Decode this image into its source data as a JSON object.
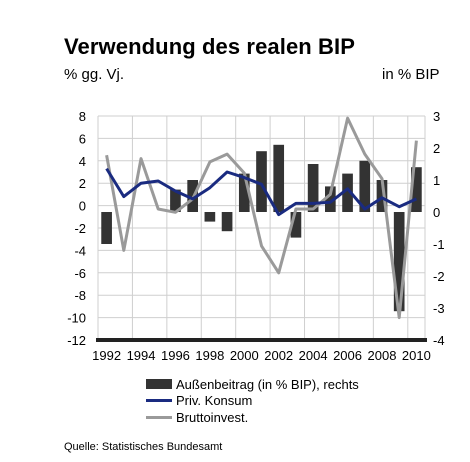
{
  "title": "Verwendung des realen BIP",
  "left_unit": "% gg. Vj.",
  "right_unit": "in % BIP",
  "source": "Quelle: Statistisches Bundesamt",
  "legend": {
    "bars": "Außenbeitrag (in % BIP), rechts",
    "konsum": "Priv. Konsum",
    "invest": "Bruttoinvest."
  },
  "colors": {
    "bars": "#333333",
    "konsum": "#1a2b80",
    "invest": "#9a9a9a",
    "grid": "#cfcfcf"
  },
  "chart_data": {
    "type": "bar",
    "years": [
      1992,
      1993,
      1994,
      1995,
      1996,
      1997,
      1998,
      1999,
      2000,
      2001,
      2002,
      2003,
      2004,
      2005,
      2006,
      2007,
      2008,
      2009,
      2010
    ],
    "x_tick_labels": [
      "1992",
      "1994",
      "1996",
      "1998",
      "2000",
      "2002",
      "2004",
      "2006",
      "2008",
      "2010"
    ],
    "left_axis": {
      "ticks": [
        "8",
        "6",
        "4",
        "2",
        "0",
        "-2",
        "-4",
        "-6",
        "-8",
        "-10",
        "-12"
      ],
      "ylim": [
        -12,
        8
      ]
    },
    "right_axis": {
      "ticks": [
        "3",
        "2",
        "1",
        "0",
        "-1",
        "-2",
        "-3",
        "-4"
      ],
      "ylim": [
        -4,
        3
      ]
    },
    "grid": true,
    "legend_position": "bottom",
    "series": [
      {
        "name": "Außenbeitrag (in % BIP), rechts",
        "kind": "bar",
        "axis": "right",
        "values": [
          -1.0,
          null,
          null,
          null,
          0.7,
          1.0,
          -0.3,
          -0.6,
          1.2,
          1.9,
          2.1,
          -0.8,
          1.5,
          0.8,
          1.2,
          1.6,
          1.0,
          -3.1,
          1.4
        ]
      },
      {
        "name": "Priv. Konsum",
        "kind": "line",
        "axis": "left",
        "values": [
          3.3,
          0.8,
          2.0,
          2.2,
          1.3,
          0.6,
          1.6,
          3.0,
          2.5,
          1.9,
          -0.8,
          0.2,
          0.2,
          0.3,
          1.5,
          -0.3,
          0.7,
          -0.1,
          0.6
        ]
      },
      {
        "name": "Bruttoinvest.",
        "kind": "line",
        "axis": "left",
        "values": [
          4.5,
          -4.0,
          4.2,
          -0.3,
          -0.6,
          0.6,
          3.9,
          4.6,
          2.9,
          -3.6,
          -6.0,
          -0.3,
          -0.3,
          1.0,
          7.8,
          4.6,
          2.4,
          -10.0,
          5.8
        ]
      }
    ]
  }
}
